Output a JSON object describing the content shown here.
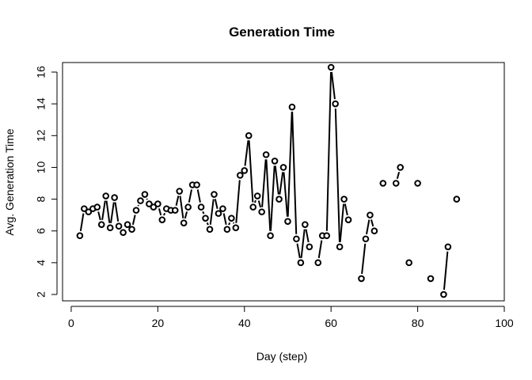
{
  "chart_data": {
    "type": "line",
    "title": "Generation Time",
    "xlabel": "Day (step)",
    "ylabel": "Avg. Generation Time",
    "xlim": [
      -2,
      100
    ],
    "ylim": [
      1.6,
      16.6
    ],
    "xticks": [
      0,
      20,
      40,
      60,
      80,
      100
    ],
    "yticks": [
      2,
      4,
      6,
      8,
      10,
      12,
      14,
      16
    ],
    "grid": false,
    "legend": "none",
    "series": [
      {
        "points": [
          [
            2,
            5.7
          ],
          [
            3,
            7.4
          ],
          [
            4,
            7.2
          ],
          [
            5,
            7.4
          ],
          [
            6,
            7.5
          ],
          [
            7,
            6.4
          ],
          [
            8,
            8.2
          ],
          [
            9,
            6.2
          ],
          [
            10,
            8.1
          ],
          [
            11,
            6.3
          ],
          [
            12,
            5.9
          ],
          [
            13,
            6.4
          ],
          [
            14,
            6.1
          ],
          [
            15,
            7.3
          ],
          [
            16,
            7.9
          ],
          [
            17,
            8.3
          ],
          [
            18,
            7.7
          ],
          [
            19,
            7.5
          ],
          [
            20,
            7.7
          ],
          [
            21,
            6.7
          ],
          [
            22,
            7.4
          ],
          [
            23,
            7.3
          ],
          [
            24,
            7.3
          ],
          [
            25,
            8.5
          ],
          [
            26,
            6.5
          ],
          [
            27,
            7.5
          ],
          [
            28,
            8.9
          ],
          [
            29,
            8.9
          ],
          [
            30,
            7.5
          ],
          [
            31,
            6.8
          ],
          [
            32,
            6.1
          ],
          [
            33,
            8.3
          ],
          [
            34,
            7.1
          ],
          [
            35,
            7.4
          ],
          [
            36,
            6.1
          ],
          [
            37,
            6.8
          ],
          [
            38,
            6.2
          ],
          [
            39,
            9.5
          ],
          [
            40,
            9.8
          ],
          [
            41,
            12.0
          ],
          [
            42,
            7.5
          ],
          [
            43,
            8.2
          ],
          [
            44,
            7.2
          ],
          [
            45,
            10.8
          ],
          [
            46,
            5.7
          ],
          [
            47,
            10.4
          ],
          [
            48,
            8.0
          ],
          [
            49,
            10.0
          ],
          [
            50,
            6.6
          ],
          [
            51,
            13.8
          ],
          [
            52,
            5.5
          ],
          [
            53,
            4.0
          ],
          [
            54,
            6.4
          ],
          [
            55,
            5.0
          ],
          [
            56,
            null
          ],
          [
            57,
            4.0
          ],
          [
            58,
            5.7
          ],
          [
            59,
            5.7
          ],
          [
            60,
            16.3
          ],
          [
            61,
            14.0
          ],
          [
            62,
            5.0
          ],
          [
            63,
            8.0
          ],
          [
            64,
            6.7
          ],
          [
            65,
            null
          ],
          [
            66,
            null
          ],
          [
            67,
            3.0
          ],
          [
            68,
            5.5
          ],
          [
            69,
            7.0
          ],
          [
            70,
            6.0
          ],
          [
            71,
            null
          ],
          [
            72,
            9.0
          ],
          [
            73,
            null
          ],
          [
            74,
            null
          ],
          [
            75,
            9.0
          ],
          [
            76,
            10.0
          ],
          [
            77,
            null
          ],
          [
            78,
            4.0
          ],
          [
            79,
            null
          ],
          [
            80,
            9.0
          ],
          [
            81,
            null
          ],
          [
            82,
            null
          ],
          [
            83,
            3.0
          ],
          [
            84,
            null
          ],
          [
            85,
            null
          ],
          [
            86,
            2.0
          ],
          [
            87,
            5.0
          ],
          [
            88,
            null
          ],
          [
            89,
            8.0
          ]
        ]
      }
    ]
  }
}
